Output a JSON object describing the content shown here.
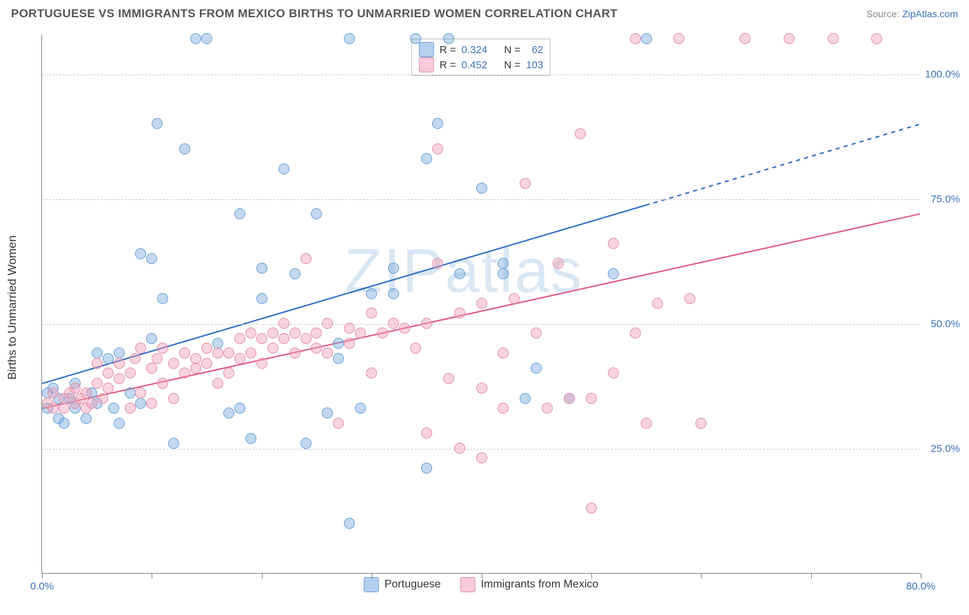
{
  "title": "PORTUGUESE VS IMMIGRANTS FROM MEXICO BIRTHS TO UNMARRIED WOMEN CORRELATION CHART",
  "source_prefix": "Source: ",
  "source_link": "ZipAtlas.com",
  "ylabel": "Births to Unmarried Women",
  "watermark": "ZIPatlas",
  "chart": {
    "type": "scatter",
    "background_color": "#ffffff",
    "grid_color": "#cccccc",
    "grid_dash": "4 4",
    "axis_color": "#888888",
    "xlim": [
      0,
      80
    ],
    "ylim": [
      0,
      108
    ],
    "xticks": [
      0,
      10,
      20,
      30,
      40,
      50,
      60,
      70,
      80
    ],
    "xtick_labels": {
      "0": "0.0%",
      "80": "80.0%"
    },
    "yticks": [
      25,
      50,
      75,
      100
    ],
    "ytick_labels": {
      "25": "25.0%",
      "50": "50.0%",
      "75": "75.0%",
      "100": "100.0%"
    },
    "label_color": "#3a6fb7",
    "label_fontsize": 15,
    "title_fontsize": 17,
    "marker_size": 16,
    "marker_opacity": 0.45
  },
  "series": [
    {
      "name": "Portuguese",
      "color_fill": "#78aadc",
      "color_stroke": "#6a9fd4",
      "R": "0.324",
      "N": "62",
      "trend": {
        "x1": 0,
        "y1": 38,
        "x2": 80,
        "y2": 90,
        "solid_until_x": 55,
        "color": "#2a6ac0",
        "width": 2
      },
      "points": [
        [
          0.5,
          33
        ],
        [
          0.5,
          36
        ],
        [
          1,
          37
        ],
        [
          1.5,
          31
        ],
        [
          1.5,
          35
        ],
        [
          2,
          30
        ],
        [
          2.5,
          35
        ],
        [
          3,
          38
        ],
        [
          3,
          33
        ],
        [
          4,
          31
        ],
        [
          4.5,
          36
        ],
        [
          5,
          34
        ],
        [
          5,
          44
        ],
        [
          6,
          43
        ],
        [
          6.5,
          33
        ],
        [
          7,
          44
        ],
        [
          7,
          30
        ],
        [
          8,
          36
        ],
        [
          9,
          34
        ],
        [
          9,
          64
        ],
        [
          10,
          47
        ],
        [
          10,
          63
        ],
        [
          10.5,
          90
        ],
        [
          11,
          55
        ],
        [
          12,
          26
        ],
        [
          13,
          85
        ],
        [
          14,
          107
        ],
        [
          15,
          107
        ],
        [
          16,
          46
        ],
        [
          17,
          32
        ],
        [
          18,
          33
        ],
        [
          18,
          72
        ],
        [
          19,
          27
        ],
        [
          20,
          55
        ],
        [
          20,
          61
        ],
        [
          22,
          81
        ],
        [
          23,
          60
        ],
        [
          24,
          26
        ],
        [
          25,
          72
        ],
        [
          26,
          32
        ],
        [
          27,
          43
        ],
        [
          27,
          46
        ],
        [
          28,
          10
        ],
        [
          28,
          107
        ],
        [
          29,
          33
        ],
        [
          30,
          56
        ],
        [
          32,
          61
        ],
        [
          32,
          56
        ],
        [
          34,
          107
        ],
        [
          35,
          21
        ],
        [
          35,
          83
        ],
        [
          36,
          90
        ],
        [
          37,
          107
        ],
        [
          38,
          60
        ],
        [
          40,
          77
        ],
        [
          42,
          60
        ],
        [
          42,
          62
        ],
        [
          44,
          35
        ],
        [
          45,
          41
        ],
        [
          48,
          35
        ],
        [
          52,
          60
        ],
        [
          55,
          107
        ]
      ]
    },
    {
      "name": "Immigants from Mexico",
      "label": "Immigrants from Mexico",
      "color_fill": "#f0a0b9",
      "color_stroke": "#e28fa8",
      "R": "0.452",
      "N": "103",
      "trend": {
        "x1": 0,
        "y1": 33,
        "x2": 80,
        "y2": 72,
        "solid_until_x": 80,
        "color": "#e05a85",
        "width": 2
      },
      "points": [
        [
          0.5,
          34
        ],
        [
          1,
          36
        ],
        [
          1,
          33
        ],
        [
          2,
          33
        ],
        [
          2,
          35
        ],
        [
          2.5,
          36
        ],
        [
          3,
          34
        ],
        [
          3,
          37
        ],
        [
          3.5,
          35
        ],
        [
          4,
          33
        ],
        [
          4,
          36
        ],
        [
          4.5,
          34
        ],
        [
          5,
          38
        ],
        [
          5,
          42
        ],
        [
          5.5,
          35
        ],
        [
          6,
          37
        ],
        [
          6,
          40
        ],
        [
          7,
          39
        ],
        [
          7,
          42
        ],
        [
          8,
          33
        ],
        [
          8,
          40
        ],
        [
          8.5,
          43
        ],
        [
          9,
          36
        ],
        [
          9,
          45
        ],
        [
          10,
          34
        ],
        [
          10,
          41
        ],
        [
          10.5,
          43
        ],
        [
          11,
          38
        ],
        [
          11,
          45
        ],
        [
          12,
          35
        ],
        [
          12,
          42
        ],
        [
          13,
          44
        ],
        [
          13,
          40
        ],
        [
          14,
          41
        ],
        [
          14,
          43
        ],
        [
          15,
          42
        ],
        [
          15,
          45
        ],
        [
          16,
          44
        ],
        [
          16,
          38
        ],
        [
          17,
          40
        ],
        [
          17,
          44
        ],
        [
          18,
          43
        ],
        [
          18,
          47
        ],
        [
          19,
          44
        ],
        [
          19,
          48
        ],
        [
          20,
          42
        ],
        [
          20,
          47
        ],
        [
          21,
          45
        ],
        [
          21,
          48
        ],
        [
          22,
          47
        ],
        [
          22,
          50
        ],
        [
          23,
          44
        ],
        [
          23,
          48
        ],
        [
          24,
          63
        ],
        [
          24,
          47
        ],
        [
          25,
          45
        ],
        [
          25,
          48
        ],
        [
          26,
          44
        ],
        [
          26,
          50
        ],
        [
          27,
          30
        ],
        [
          28,
          46
        ],
        [
          28,
          49
        ],
        [
          29,
          48
        ],
        [
          30,
          52
        ],
        [
          30,
          40
        ],
        [
          31,
          48
        ],
        [
          32,
          50
        ],
        [
          33,
          49
        ],
        [
          34,
          45
        ],
        [
          35,
          28
        ],
        [
          35,
          50
        ],
        [
          36,
          62
        ],
        [
          36,
          85
        ],
        [
          37,
          39
        ],
        [
          38,
          52
        ],
        [
          38,
          25
        ],
        [
          40,
          37
        ],
        [
          40,
          23
        ],
        [
          40,
          54
        ],
        [
          42,
          33
        ],
        [
          42,
          44
        ],
        [
          43,
          55
        ],
        [
          44,
          78
        ],
        [
          45,
          48
        ],
        [
          46,
          33
        ],
        [
          47,
          62
        ],
        [
          48,
          35
        ],
        [
          49,
          88
        ],
        [
          50,
          13
        ],
        [
          50,
          35
        ],
        [
          52,
          40
        ],
        [
          52,
          66
        ],
        [
          54,
          107
        ],
        [
          54,
          48
        ],
        [
          55,
          30
        ],
        [
          56,
          54
        ],
        [
          58,
          107
        ],
        [
          59,
          55
        ],
        [
          60,
          30
        ],
        [
          64,
          107
        ],
        [
          68,
          107
        ],
        [
          72,
          107
        ],
        [
          76,
          107
        ]
      ]
    }
  ],
  "legend_top": {
    "R_label": "R =",
    "N_label": "N ="
  },
  "legend_bottom": {
    "s1": "Portuguese",
    "s2": "Immigrants from Mexico"
  }
}
